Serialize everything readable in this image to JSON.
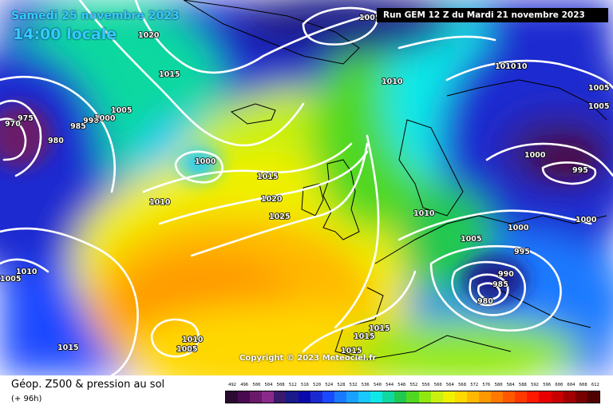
{
  "header": {
    "date": "Samedi 25 novembre 2023",
    "time": "14:00 locale",
    "run": "Run GEM 12 Z du Mardi 21 novembre 2023"
  },
  "copyright": "Copyright © 2023 Meteociel.fr",
  "legend": {
    "title": "Géop. Z500 & pression au sol",
    "subtitle": "(+ 96h)",
    "labels": [
      "492",
      "496",
      "500",
      "504",
      "508",
      "512",
      "516",
      "520",
      "524",
      "528",
      "532",
      "536",
      "540",
      "544",
      "548",
      "552",
      "556",
      "560",
      "564",
      "568",
      "572",
      "576",
      "580",
      "584",
      "588",
      "592",
      "596",
      "600",
      "604",
      "608",
      "612"
    ],
    "colors": [
      "#2a0a30",
      "#4a0a50",
      "#6a1a6a",
      "#8a2a8a",
      "#3a1a6a",
      "#1a1a8a",
      "#0a0aaa",
      "#1a2ad0",
      "#1a4aff",
      "#1a7aff",
      "#1aa0ff",
      "#1ac8ff",
      "#10e8e8",
      "#10d8a0",
      "#20c850",
      "#50d820",
      "#90e810",
      "#c8f010",
      "#f0f000",
      "#ffd800",
      "#ffb800",
      "#ff9800",
      "#ff7800",
      "#ff5800",
      "#ff3800",
      "#ff1800",
      "#e80000",
      "#c80000",
      "#a00000",
      "#780000",
      "#500000"
    ]
  },
  "isobars": [
    {
      "label": "1020"
    },
    {
      "label": "1015"
    },
    {
      "label": "1005"
    },
    {
      "label": "975"
    },
    {
      "label": "970"
    },
    {
      "label": "980"
    },
    {
      "label": "985"
    },
    {
      "label": "990"
    },
    {
      "label": "1000"
    },
    {
      "label": "1000"
    },
    {
      "label": "1015"
    },
    {
      "label": "1020"
    },
    {
      "label": "1025"
    },
    {
      "label": "1010"
    },
    {
      "label": "1010"
    },
    {
      "label": "1010"
    },
    {
      "label": "1005"
    },
    {
      "label": "1010"
    },
    {
      "label": "1015"
    },
    {
      "label": "1010"
    },
    {
      "label": "1005"
    },
    {
      "label": "1015"
    },
    {
      "label": "1015"
    },
    {
      "label": "1015"
    },
    {
      "label": "1010"
    },
    {
      "label": "1005"
    },
    {
      "label": "1000"
    },
    {
      "label": "995"
    },
    {
      "label": "990"
    },
    {
      "label": "985"
    },
    {
      "label": "980"
    },
    {
      "label": "1000"
    },
    {
      "label": "995"
    },
    {
      "label": "1000"
    },
    {
      "label": "1005"
    },
    {
      "label": "1005"
    },
    {
      "label": "1010"
    },
    {
      "label": "1005"
    }
  ]
}
